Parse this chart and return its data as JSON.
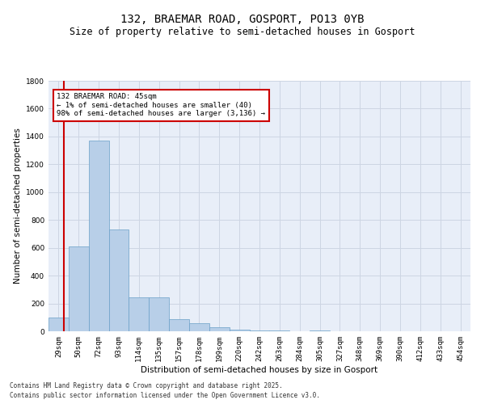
{
  "title_line1": "132, BRAEMAR ROAD, GOSPORT, PO13 0YB",
  "title_line2": "Size of property relative to semi-detached houses in Gosport",
  "xlabel": "Distribution of semi-detached houses by size in Gosport",
  "ylabel": "Number of semi-detached properties",
  "categories": [
    "29sqm",
    "50sqm",
    "72sqm",
    "93sqm",
    "114sqm",
    "135sqm",
    "157sqm",
    "178sqm",
    "199sqm",
    "220sqm",
    "242sqm",
    "263sqm",
    "284sqm",
    "305sqm",
    "327sqm",
    "348sqm",
    "369sqm",
    "390sqm",
    "412sqm",
    "433sqm",
    "454sqm"
  ],
  "values": [
    100,
    610,
    1370,
    730,
    245,
    245,
    85,
    60,
    30,
    10,
    5,
    3,
    2,
    8,
    1,
    0,
    0,
    0,
    0,
    0,
    0
  ],
  "bar_color": "#b8cfe8",
  "bar_edge_color": "#6a9fc8",
  "highlight_line_color": "#cc0000",
  "annotation_text": "132 BRAEMAR ROAD: 45sqm\n← 1% of semi-detached houses are smaller (40)\n98% of semi-detached houses are larger (3,136) →",
  "annotation_box_color": "#ffffff",
  "annotation_box_edge": "#cc0000",
  "ylim": [
    0,
    1800
  ],
  "yticks": [
    0,
    200,
    400,
    600,
    800,
    1000,
    1200,
    1400,
    1600,
    1800
  ],
  "grid_color": "#cdd5e3",
  "background_color": "#e8eef8",
  "footnote1": "Contains HM Land Registry data © Crown copyright and database right 2025.",
  "footnote2": "Contains public sector information licensed under the Open Government Licence v3.0.",
  "title_fontsize": 10,
  "subtitle_fontsize": 8.5,
  "axis_label_fontsize": 7.5,
  "tick_fontsize": 6.5,
  "annot_fontsize": 6.5,
  "footnote_fontsize": 5.5
}
